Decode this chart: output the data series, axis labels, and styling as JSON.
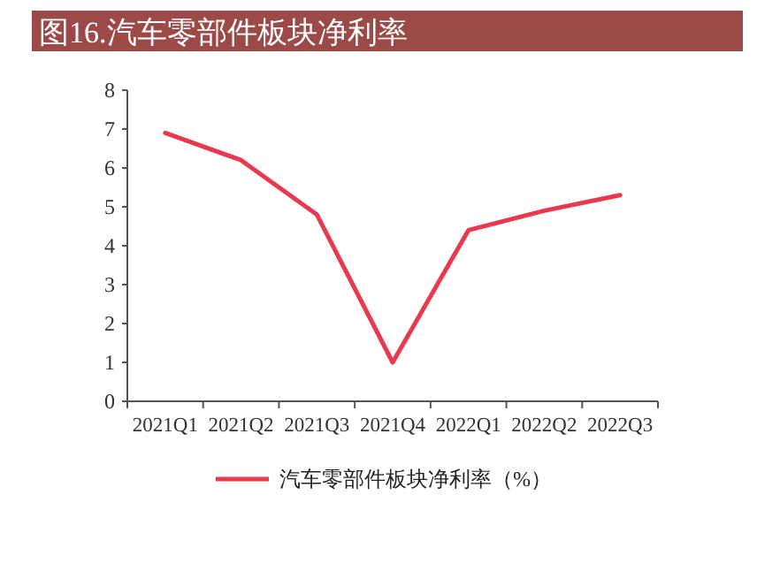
{
  "chart_data": {
    "type": "line",
    "title": "图16.汽车零部件板块净利率",
    "categories": [
      "2021Q1",
      "2021Q2",
      "2021Q3",
      "2021Q4",
      "2022Q1",
      "2022Q2",
      "2022Q3"
    ],
    "series": [
      {
        "name": "汽车零部件板块净利率（%）",
        "color": "#e8394e",
        "values": [
          6.9,
          6.2,
          4.8,
          1.0,
          4.4,
          4.9,
          5.3
        ]
      }
    ],
    "ylim": [
      0,
      8
    ],
    "yticks": [
      0,
      1,
      2,
      3,
      4,
      5,
      6,
      7,
      8
    ],
    "grid": false,
    "legend": "bottom",
    "marker": "none",
    "line_style": "solid"
  }
}
